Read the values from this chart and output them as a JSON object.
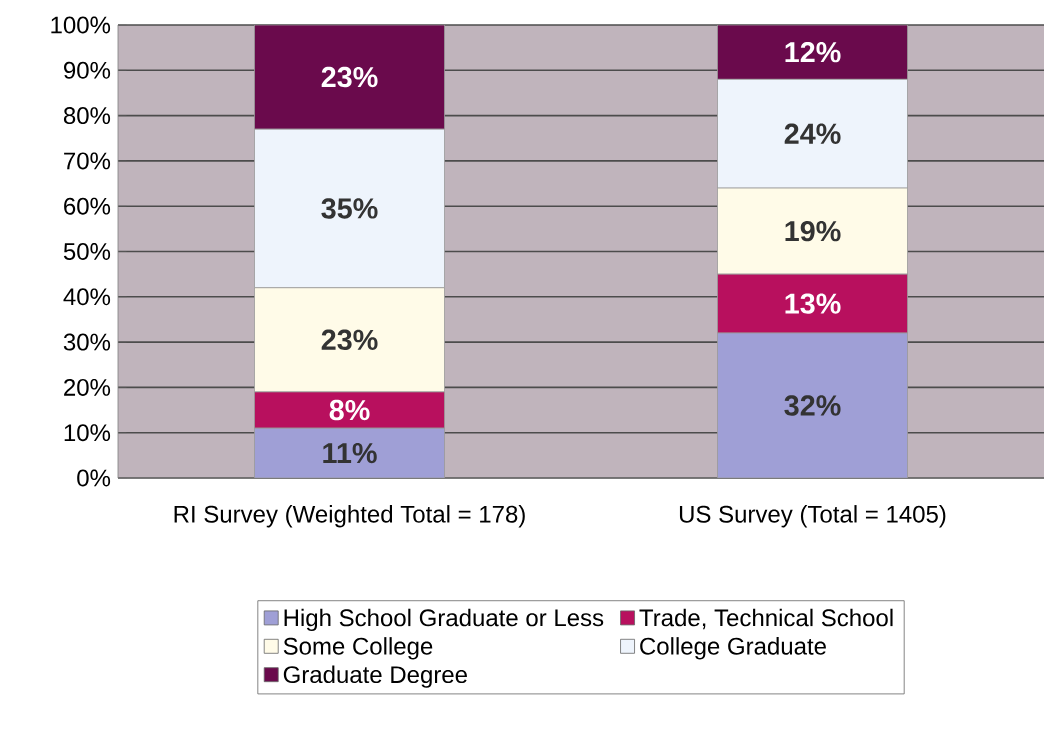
{
  "chart_data": {
    "type": "bar",
    "stacked": true,
    "categories": [
      "RI Survey (Weighted Total = 178)",
      "US Survey (Total = 1405)"
    ],
    "series": [
      {
        "name": "High School Graduate or Less",
        "color": "#9f9fd6",
        "values": [
          11,
          32
        ],
        "value_labels": [
          "11%",
          "32%"
        ]
      },
      {
        "name": "Trade, Technical School",
        "color": "#b8105e",
        "values": [
          8,
          13
        ],
        "value_labels": [
          "8%",
          "13%"
        ]
      },
      {
        "name": "Some College",
        "color": "#fffbe8",
        "values": [
          23,
          19
        ],
        "value_labels": [
          "23%",
          "19%"
        ]
      },
      {
        "name": "College Graduate",
        "color": "#eef4fc",
        "values": [
          35,
          24
        ],
        "value_labels": [
          "35%",
          "24%"
        ]
      },
      {
        "name": "Graduate Degree",
        "color": "#6a0a4c",
        "values": [
          23,
          12
        ],
        "value_labels": [
          "23%",
          "12%"
        ]
      }
    ],
    "ylim": [
      0,
      100
    ],
    "yticks": [
      {
        "value": 0,
        "label": "0%"
      },
      {
        "value": 10,
        "label": "10%"
      },
      {
        "value": 20,
        "label": "20%"
      },
      {
        "value": 30,
        "label": "30%"
      },
      {
        "value": 40,
        "label": "40%"
      },
      {
        "value": 50,
        "label": "50%"
      },
      {
        "value": 60,
        "label": "60%"
      },
      {
        "value": 70,
        "label": "70%"
      },
      {
        "value": 80,
        "label": "80%"
      },
      {
        "value": 90,
        "label": "90%"
      },
      {
        "value": 100,
        "label": "100%"
      }
    ],
    "grid": "y",
    "legend": "bottom"
  }
}
